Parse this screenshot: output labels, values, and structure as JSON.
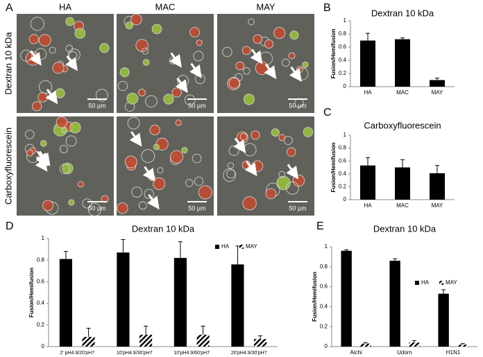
{
  "figure_a": {
    "letter": "A",
    "columns": [
      "HA",
      "MAC",
      "MAY"
    ],
    "rows": [
      "Dextran 10 kDa",
      "Carboxyfluorescein"
    ],
    "scale_bar": "50 µm"
  },
  "chart_data": [
    {
      "type": "bar",
      "panel": "B",
      "title": "Dextran 10 kDa",
      "ylabel": "Fusion/Hemifusion",
      "categories": [
        "HA",
        "MAC",
        "MAY"
      ],
      "series": [
        {
          "name": "HA",
          "color": "#000000",
          "values": [
            0.7,
            0.72,
            0.1
          ],
          "errors": [
            0.11,
            0.02,
            0.03
          ]
        }
      ],
      "ylim": [
        0,
        1
      ],
      "yticks": [
        0,
        0.2,
        0.4,
        0.6,
        0.8,
        1
      ]
    },
    {
      "type": "bar",
      "panel": "C",
      "title": "Carboxyfluorescein",
      "ylabel": "Fusion/Hemifusion",
      "categories": [
        "HA",
        "MAC",
        "MAY"
      ],
      "series": [
        {
          "name": "HA",
          "color": "#000000",
          "values": [
            0.53,
            0.5,
            0.41
          ],
          "errors": [
            0.12,
            0.12,
            0.12
          ]
        }
      ],
      "ylim": [
        0,
        1
      ],
      "yticks": [
        0,
        0.2,
        0.4,
        0.6,
        0.8,
        1
      ]
    },
    {
      "type": "bar",
      "panel": "D",
      "title": "Dextran 10 kDa",
      "ylabel": "Fusion/Hemifusion",
      "categories": [
        "2' pH4.9/20'pH7",
        "10'pH4.9/30'pH7",
        "10'pH4.9/60'pH7",
        "20'pH4.9/30'pH7"
      ],
      "series": [
        {
          "name": "HA",
          "color": "#000000",
          "values": [
            0.81,
            0.87,
            0.82,
            0.76
          ],
          "errors": [
            0.07,
            0.12,
            0.15,
            0.17
          ]
        },
        {
          "name": "MAY",
          "color": "#000000",
          "hatch": true,
          "values": [
            0.09,
            0.11,
            0.11,
            0.07
          ],
          "errors": [
            0.08,
            0.08,
            0.08,
            0.03
          ]
        }
      ],
      "legend": "upper right",
      "ylim": [
        0,
        1
      ],
      "yticks": [
        0,
        0.2,
        0.4,
        0.6,
        0.8,
        1
      ]
    },
    {
      "type": "bar",
      "panel": "E",
      "title": "Dextran 10 kDa",
      "ylabel": "Fusion/Hemifusion",
      "categories": [
        "Aichi",
        "Udorn",
        "H1N1"
      ],
      "series": [
        {
          "name": "HA",
          "color": "#000000",
          "values": [
            0.96,
            0.86,
            0.53
          ],
          "errors": [
            0.01,
            0.02,
            0.04
          ]
        },
        {
          "name": "MAY",
          "color": "#000000",
          "hatch": true,
          "values": [
            0.03,
            0.04,
            0.02
          ],
          "errors": [
            0.01,
            0.02,
            0.01
          ]
        }
      ],
      "legend": "right",
      "ylim": [
        0,
        1
      ],
      "yticks": [
        0,
        0.2,
        0.4,
        0.6,
        0.8,
        1
      ]
    }
  ]
}
